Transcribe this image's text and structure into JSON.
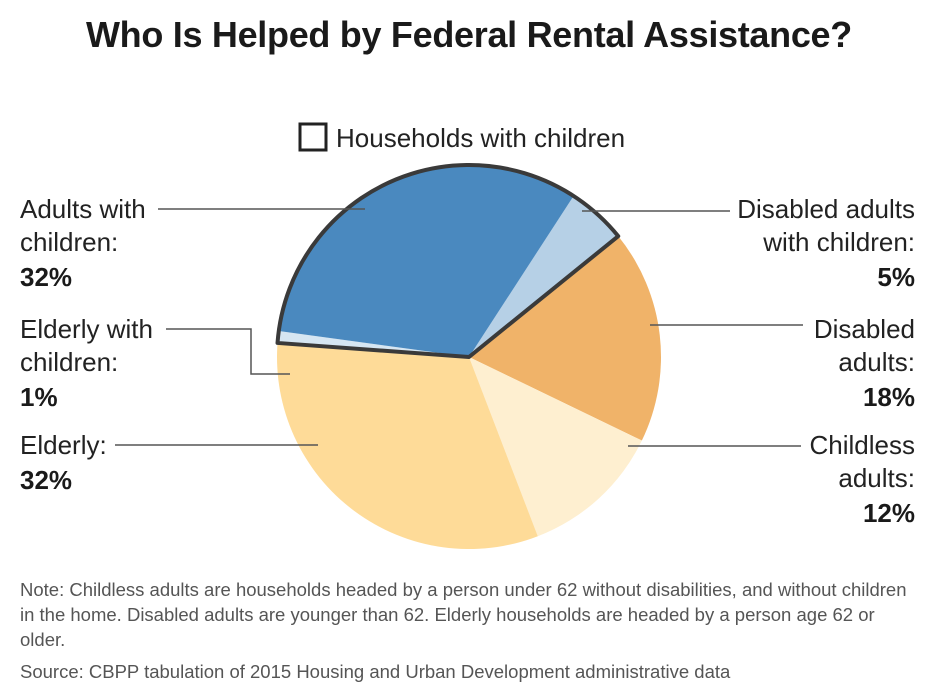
{
  "chart_data": {
    "type": "pie",
    "title": "Who Is Helped by Federal Rental Assistance?",
    "legend": "Households with children",
    "slices": [
      {
        "label": "Disabled adults with children:",
        "value": 5,
        "pct_label": "5%",
        "color": "#b6d0e6",
        "with_children": true
      },
      {
        "label": "Disabled adults:",
        "value": 18,
        "pct_label": "18%",
        "color": "#f0b369",
        "with_children": false
      },
      {
        "label": "Childless adults:",
        "value": 12,
        "pct_label": "12%",
        "color": "#feefd0",
        "with_children": false
      },
      {
        "label": "Elderly:",
        "value": 32,
        "pct_label": "32%",
        "color": "#fedb98",
        "with_children": false
      },
      {
        "label": "Elderly with children:",
        "value": 1,
        "pct_label": "1%",
        "color": "#d6e6f2",
        "with_children": true
      },
      {
        "label": "Adults with children:",
        "value": 32,
        "pct_label": "32%",
        "color": "#4a89bf",
        "with_children": true
      }
    ]
  },
  "note": "Note: Childless adults are households headed by a person under 62 without disabilities, and without children in the home. Disabled adults are younger than 62. Elderly households are headed by a person age 62 or older.",
  "source": "Source: CBPP tabulation of 2015 Housing and Urban Development administrative data"
}
